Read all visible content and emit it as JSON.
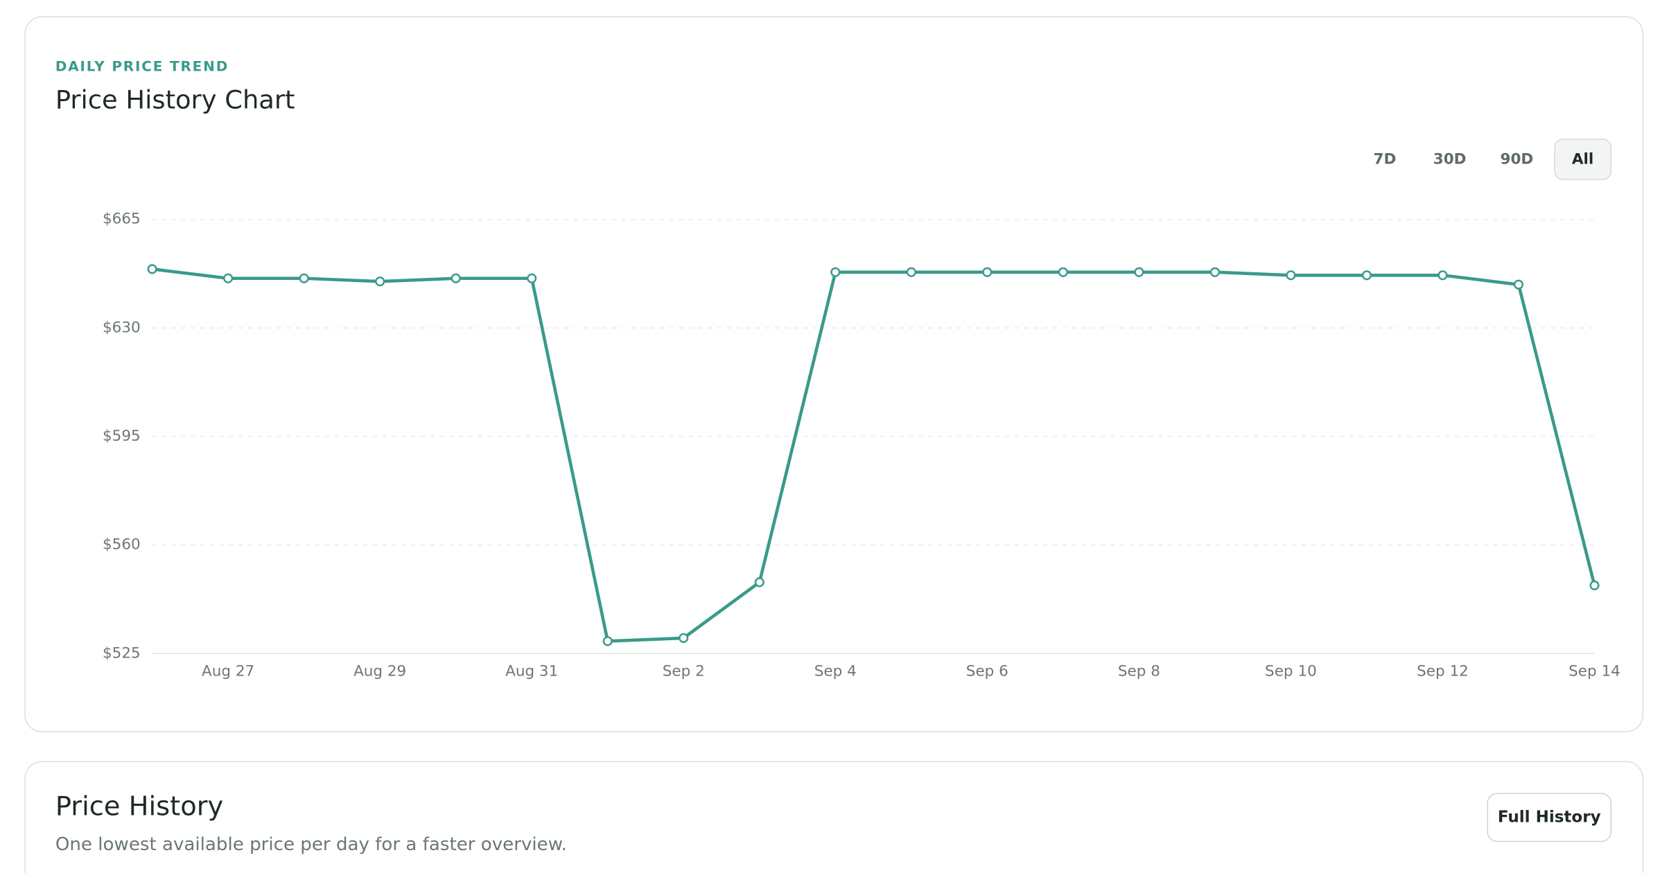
{
  "chart_data": {
    "type": "line",
    "eyebrow": "DAILY PRICE TREND",
    "title": "Price History Chart",
    "range_buttons": [
      "7D",
      "30D",
      "90D",
      "All"
    ],
    "active_range_index": 3,
    "categories": [
      null,
      "Aug 27",
      null,
      "Aug 29",
      null,
      "Aug 31",
      null,
      "Sep 2",
      null,
      "Sep 4",
      null,
      "Sep 6",
      null,
      "Sep 8",
      null,
      "Sep 10",
      null,
      "Sep 12",
      null,
      "Sep 14"
    ],
    "series": [
      {
        "name": "Price",
        "color": "#3a9a8a",
        "values": [
          649,
          646,
          646,
          645,
          646,
          646,
          529,
          530,
          548,
          648,
          648,
          648,
          648,
          648,
          648,
          647,
          647,
          647,
          644,
          547
        ]
      }
    ],
    "ylim": [
      525,
      665
    ],
    "yticks": [
      {
        "value": 525,
        "label": "$525"
      },
      {
        "value": 560,
        "label": "$560"
      },
      {
        "value": 595,
        "label": "$595"
      },
      {
        "value": 630,
        "label": "$630"
      },
      {
        "value": 665,
        "label": "$665"
      }
    ],
    "grid": true
  },
  "history_section": {
    "title": "Price History",
    "subtitle": "One lowest available price per day for a faster overview.",
    "button": "Full History"
  }
}
